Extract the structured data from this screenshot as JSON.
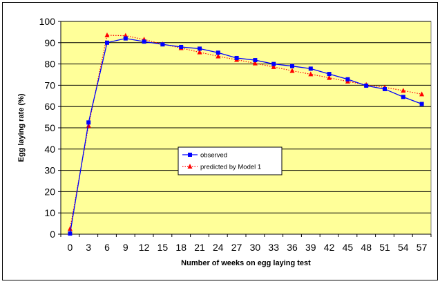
{
  "chart_data": {
    "type": "line",
    "title": "",
    "xlabel": "Number of weeks on egg laying test",
    "ylabel": "Egg laying rate (%)",
    "x": [
      0,
      3,
      6,
      9,
      12,
      15,
      18,
      21,
      24,
      27,
      30,
      33,
      36,
      39,
      42,
      45,
      48,
      51,
      54,
      57
    ],
    "xlim": [
      0,
      57
    ],
    "ylim": [
      0,
      100
    ],
    "yticks": [
      "0",
      "10",
      "20",
      "30",
      "40",
      "50",
      "60",
      "70",
      "80",
      "90",
      "100"
    ],
    "xticks": [
      "0",
      "3",
      "6",
      "9",
      "12",
      "15",
      "18",
      "21",
      "24",
      "27",
      "30",
      "33",
      "36",
      "39",
      "42",
      "45",
      "48",
      "51",
      "54",
      "57"
    ],
    "grid": true,
    "legend_position": "center",
    "plot_background": "#FFFF99",
    "series": [
      {
        "name": "observed",
        "color": "#0000FF",
        "line_style": "solid",
        "marker": "square",
        "values": [
          0.3,
          52.5,
          90.0,
          92.0,
          90.5,
          89.2,
          88.0,
          87.2,
          85.3,
          82.8,
          81.8,
          80.0,
          79.0,
          77.8,
          75.3,
          72.8,
          69.8,
          68.2,
          64.5,
          61.2
        ]
      },
      {
        "name": "predicted by Model 1",
        "color": "#FF0000",
        "line_style": "dotted",
        "marker": "triangle",
        "values": [
          2.5,
          51.0,
          93.5,
          93.3,
          91.5,
          89.3,
          87.5,
          85.5,
          83.6,
          82.0,
          80.3,
          78.6,
          76.8,
          75.2,
          73.5,
          71.8,
          70.2,
          69.0,
          67.5,
          65.8
        ]
      }
    ]
  }
}
